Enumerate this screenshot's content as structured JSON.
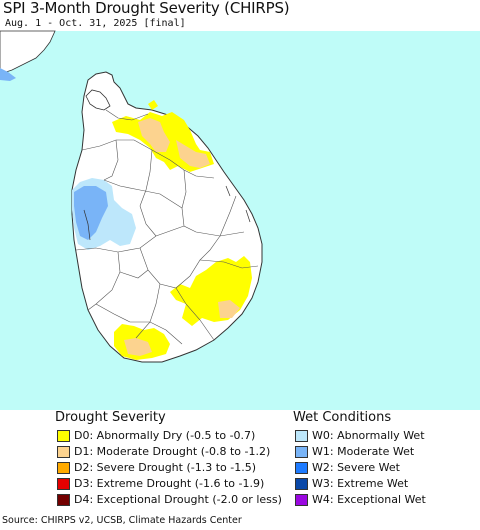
{
  "header": {
    "title": "SPI 3-Month Drought Severity (CHIRPS)",
    "subtitle": "Aug. 1 - Oct. 31, 2025 [final]"
  },
  "map": {
    "sea_color": "#bffcf8",
    "land_color": "#ffffff",
    "boundary_color": "#333333"
  },
  "legend": {
    "drought": {
      "heading": "Drought Severity",
      "items": [
        {
          "label": "D0: Abnormally Dry (-0.5 to -0.7)",
          "color": "#ffff00"
        },
        {
          "label": "D1: Moderate Drought (-0.8 to -1.2)",
          "color": "#fcd38f"
        },
        {
          "label": "D2: Severe Drought (-1.3 to -1.5)",
          "color": "#ffaa00"
        },
        {
          "label": "D3: Extreme Drought (-1.6 to -1.9)",
          "color": "#e60000"
        },
        {
          "label": "D4: Exceptional Drought (-2.0 or less)",
          "color": "#730000"
        }
      ]
    },
    "wet": {
      "heading": "Wet Conditions",
      "items": [
        {
          "label": "W0: Abnormally Wet",
          "color": "#bde7fb"
        },
        {
          "label": "W1: Moderate Wet",
          "color": "#79b4f7"
        },
        {
          "label": "W2: Severe Wet",
          "color": "#1e7bff"
        },
        {
          "label": "W3: Extreme Wet",
          "color": "#0a48a8"
        },
        {
          "label": "W4: Exceptional Wet",
          "color": "#9a08e0"
        }
      ]
    }
  },
  "footer": {
    "source": "Source: CHIRPS v2, UCSB, Climate Hazards Center"
  }
}
